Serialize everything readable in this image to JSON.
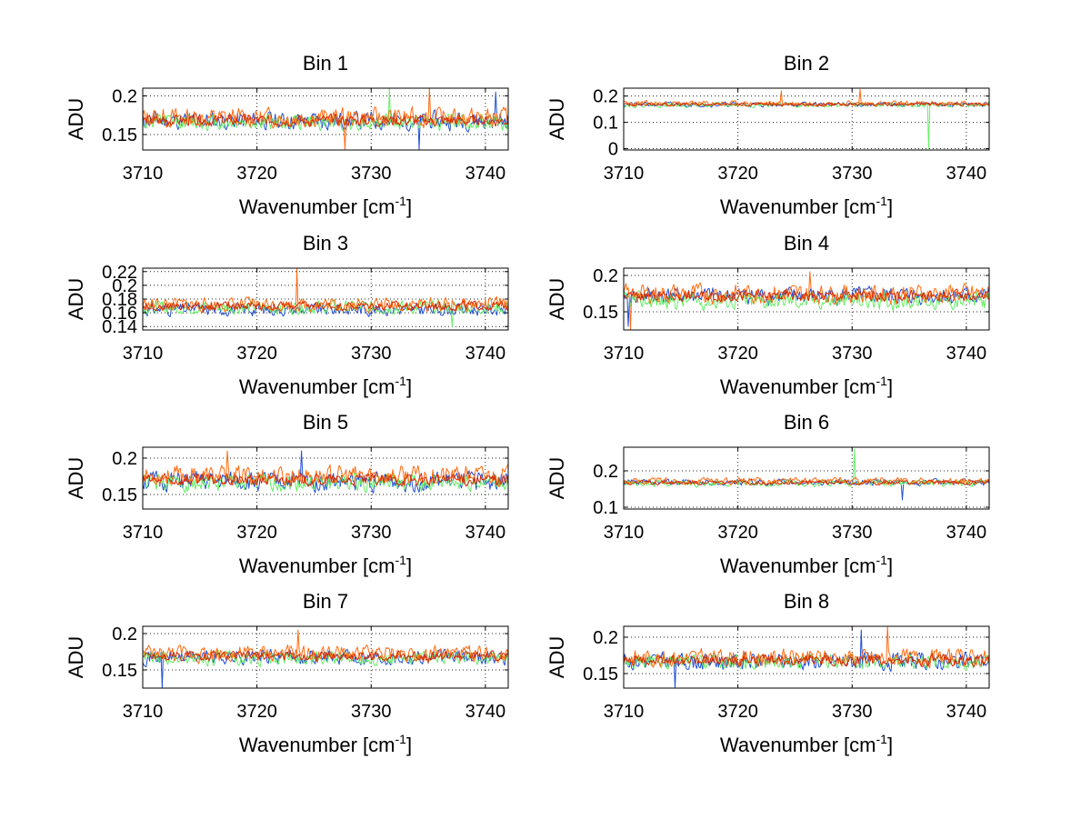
{
  "figure": {
    "description_colors": {
      "blue": "#0044cc",
      "green": "#66ff66",
      "orange": "#ff6600",
      "red": "#cc2200"
    }
  },
  "chart_data": [
    {
      "type": "line",
      "title": "Bin 1",
      "xlabel": "Wavenumber [cm",
      "xlabel_superscript": "-1",
      "xlabel_suffix": "]",
      "ylabel": "ADU",
      "xlim": [
        3710,
        3742
      ],
      "ylim": [
        0.13,
        0.21
      ],
      "xticks": [
        3710,
        3720,
        3730,
        3740
      ],
      "xtick_labels": [
        "3710",
        "3720",
        "3730",
        "3740"
      ],
      "yticks": [
        0.15,
        0.2
      ],
      "ytick_labels": [
        "0.15",
        "0.2"
      ],
      "grid": true,
      "noisy_spectra": true,
      "series": [
        {
          "name": "blue",
          "color": "#1f4fd6",
          "mean": 0.168,
          "amplitude": 0.016,
          "seed": 11,
          "spikes": [
            [
              3734.2,
              0.13
            ],
            [
              3740.9,
              0.205
            ]
          ]
        },
        {
          "name": "green",
          "color": "#66ee66",
          "mean": 0.166,
          "amplitude": 0.014,
          "seed": 12,
          "spikes": [
            [
              3731.6,
              0.21
            ]
          ]
        },
        {
          "name": "orange",
          "color": "#ff6a10",
          "mean": 0.172,
          "amplitude": 0.017,
          "seed": 13,
          "spikes": [
            [
              3727.7,
              0.13
            ],
            [
              3735.1,
              0.21
            ]
          ]
        },
        {
          "name": "red",
          "color": "#d62a00",
          "mean": 0.168,
          "amplitude": 0.01,
          "seed": 14,
          "spikes": []
        }
      ]
    },
    {
      "type": "line",
      "title": "Bin 2",
      "xlabel": "Wavenumber [cm",
      "xlabel_superscript": "-1",
      "xlabel_suffix": "]",
      "ylabel": "ADU",
      "xlim": [
        3710,
        3742
      ],
      "ylim": [
        -0.005,
        0.23
      ],
      "xticks": [
        3710,
        3720,
        3730,
        3740
      ],
      "xtick_labels": [
        "3710",
        "3720",
        "3730",
        "3740"
      ],
      "yticks": [
        0,
        0.1,
        0.2
      ],
      "ytick_labels": [
        "0",
        "0.1",
        "0.2"
      ],
      "grid": true,
      "noisy_spectra": true,
      "series": [
        {
          "name": "blue",
          "color": "#1f4fd6",
          "mean": 0.168,
          "amplitude": 0.012,
          "seed": 21,
          "spikes": []
        },
        {
          "name": "green",
          "color": "#66ee66",
          "mean": 0.166,
          "amplitude": 0.012,
          "seed": 22,
          "spikes": [
            [
              3736.7,
              0.0
            ]
          ]
        },
        {
          "name": "orange",
          "color": "#ff6a10",
          "mean": 0.172,
          "amplitude": 0.013,
          "seed": 23,
          "spikes": [
            [
              3723.8,
              0.22
            ],
            [
              3730.7,
              0.225
            ]
          ]
        },
        {
          "name": "red",
          "color": "#d62a00",
          "mean": 0.168,
          "amplitude": 0.008,
          "seed": 24,
          "spikes": []
        }
      ]
    },
    {
      "type": "line",
      "title": "Bin 3",
      "xlabel": "Wavenumber [cm",
      "xlabel_superscript": "-1",
      "xlabel_suffix": "]",
      "ylabel": "ADU",
      "xlim": [
        3710,
        3742
      ],
      "ylim": [
        0.135,
        0.225
      ],
      "xticks": [
        3710,
        3720,
        3730,
        3740
      ],
      "xtick_labels": [
        "3710",
        "3720",
        "3730",
        "3740"
      ],
      "yticks": [
        0.14,
        0.16,
        0.18,
        0.2,
        0.22
      ],
      "ytick_labels": [
        "0.14",
        "0.16",
        "0.18",
        "0.2",
        "0.22"
      ],
      "grid": true,
      "noisy_spectra": true,
      "series": [
        {
          "name": "blue",
          "color": "#1f4fd6",
          "mean": 0.165,
          "amplitude": 0.012,
          "seed": 31,
          "spikes": []
        },
        {
          "name": "green",
          "color": "#66ee66",
          "mean": 0.168,
          "amplitude": 0.013,
          "seed": 32,
          "spikes": [
            [
              3737.1,
              0.14
            ]
          ]
        },
        {
          "name": "orange",
          "color": "#ff6a10",
          "mean": 0.172,
          "amplitude": 0.014,
          "seed": 33,
          "spikes": [
            [
              3723.5,
              0.225
            ]
          ]
        },
        {
          "name": "red",
          "color": "#d62a00",
          "mean": 0.17,
          "amplitude": 0.009,
          "seed": 34,
          "spikes": []
        }
      ]
    },
    {
      "type": "line",
      "title": "Bin 4",
      "xlabel": "Wavenumber [cm",
      "xlabel_superscript": "-1",
      "xlabel_suffix": "]",
      "ylabel": "ADU",
      "xlim": [
        3710,
        3742
      ],
      "ylim": [
        0.125,
        0.21
      ],
      "xticks": [
        3710,
        3720,
        3730,
        3740
      ],
      "xtick_labels": [
        "3710",
        "3720",
        "3730",
        "3740"
      ],
      "yticks": [
        0.15,
        0.2
      ],
      "ytick_labels": [
        "0.15",
        "0.2"
      ],
      "grid": true,
      "noisy_spectra": true,
      "series": [
        {
          "name": "blue",
          "color": "#1f4fd6",
          "mean": 0.172,
          "amplitude": 0.016,
          "seed": 41,
          "spikes": [
            [
              3710.4,
              0.13
            ]
          ]
        },
        {
          "name": "green",
          "color": "#66ee66",
          "mean": 0.165,
          "amplitude": 0.016,
          "seed": 42,
          "spikes": []
        },
        {
          "name": "orange",
          "color": "#ff6a10",
          "mean": 0.175,
          "amplitude": 0.018,
          "seed": 43,
          "spikes": [
            [
              3710.6,
              0.125
            ],
            [
              3726.3,
              0.205
            ]
          ]
        },
        {
          "name": "red",
          "color": "#d62a00",
          "mean": 0.172,
          "amplitude": 0.01,
          "seed": 44,
          "spikes": []
        }
      ]
    },
    {
      "type": "line",
      "title": "Bin 5",
      "xlabel": "Wavenumber [cm",
      "xlabel_superscript": "-1",
      "xlabel_suffix": "]",
      "ylabel": "ADU",
      "xlim": [
        3710,
        3742
      ],
      "ylim": [
        0.13,
        0.215
      ],
      "xticks": [
        3710,
        3720,
        3730,
        3740
      ],
      "xtick_labels": [
        "3710",
        "3720",
        "3730",
        "3740"
      ],
      "yticks": [
        0.15,
        0.2
      ],
      "ytick_labels": [
        "0.15",
        "0.2"
      ],
      "grid": true,
      "noisy_spectra": true,
      "series": [
        {
          "name": "blue",
          "color": "#1f4fd6",
          "mean": 0.168,
          "amplitude": 0.018,
          "seed": 51,
          "spikes": [
            [
              3723.9,
              0.21
            ]
          ]
        },
        {
          "name": "green",
          "color": "#66ee66",
          "mean": 0.166,
          "amplitude": 0.016,
          "seed": 52,
          "spikes": []
        },
        {
          "name": "orange",
          "color": "#ff6a10",
          "mean": 0.176,
          "amplitude": 0.018,
          "seed": 53,
          "spikes": [
            [
              3717.4,
              0.21
            ]
          ]
        },
        {
          "name": "red",
          "color": "#d62a00",
          "mean": 0.17,
          "amplitude": 0.011,
          "seed": 54,
          "spikes": []
        }
      ]
    },
    {
      "type": "line",
      "title": "Bin 6",
      "xlabel": "Wavenumber [cm",
      "xlabel_superscript": "-1",
      "xlabel_suffix": "]",
      "ylabel": "ADU",
      "xlim": [
        3710,
        3742
      ],
      "ylim": [
        0.095,
        0.265
      ],
      "xticks": [
        3710,
        3720,
        3730,
        3740
      ],
      "xtick_labels": [
        "3710",
        "3720",
        "3730",
        "3740"
      ],
      "yticks": [
        0.1,
        0.2
      ],
      "ytick_labels": [
        "0.1",
        "0.2"
      ],
      "grid": true,
      "noisy_spectra": true,
      "series": [
        {
          "name": "blue",
          "color": "#1f4fd6",
          "mean": 0.168,
          "amplitude": 0.012,
          "seed": 61,
          "spikes": [
            [
              3734.4,
              0.12
            ]
          ]
        },
        {
          "name": "green",
          "color": "#66ee66",
          "mean": 0.166,
          "amplitude": 0.012,
          "seed": 62,
          "spikes": [
            [
              3730.2,
              0.26
            ]
          ]
        },
        {
          "name": "orange",
          "color": "#ff6a10",
          "mean": 0.172,
          "amplitude": 0.013,
          "seed": 63,
          "spikes": []
        },
        {
          "name": "red",
          "color": "#d62a00",
          "mean": 0.168,
          "amplitude": 0.008,
          "seed": 64,
          "spikes": []
        }
      ]
    },
    {
      "type": "line",
      "title": "Bin 7",
      "xlabel": "Wavenumber [cm",
      "xlabel_superscript": "-1",
      "xlabel_suffix": "]",
      "ylabel": "ADU",
      "xlim": [
        3710,
        3742
      ],
      "ylim": [
        0.125,
        0.21
      ],
      "xticks": [
        3710,
        3720,
        3730,
        3740
      ],
      "xtick_labels": [
        "3710",
        "3720",
        "3730",
        "3740"
      ],
      "yticks": [
        0.15,
        0.2
      ],
      "ytick_labels": [
        "0.15",
        "0.2"
      ],
      "grid": true,
      "noisy_spectra": true,
      "series": [
        {
          "name": "blue",
          "color": "#1f4fd6",
          "mean": 0.168,
          "amplitude": 0.014,
          "seed": 71,
          "spikes": [
            [
              3711.7,
              0.125
            ]
          ]
        },
        {
          "name": "green",
          "color": "#66ee66",
          "mean": 0.166,
          "amplitude": 0.013,
          "seed": 72,
          "spikes": []
        },
        {
          "name": "orange",
          "color": "#ff6a10",
          "mean": 0.172,
          "amplitude": 0.015,
          "seed": 73,
          "spikes": [
            [
              3723.6,
              0.205
            ]
          ]
        },
        {
          "name": "red",
          "color": "#d62a00",
          "mean": 0.169,
          "amplitude": 0.009,
          "seed": 74,
          "spikes": []
        }
      ]
    },
    {
      "type": "line",
      "title": "Bin 8",
      "xlabel": "Wavenumber [cm",
      "xlabel_superscript": "-1",
      "xlabel_suffix": "]",
      "ylabel": "ADU",
      "xlim": [
        3710,
        3742
      ],
      "ylim": [
        0.13,
        0.215
      ],
      "xticks": [
        3710,
        3720,
        3730,
        3740
      ],
      "xtick_labels": [
        "3710",
        "3720",
        "3730",
        "3740"
      ],
      "yticks": [
        0.15,
        0.2
      ],
      "ytick_labels": [
        "0.15",
        "0.2"
      ],
      "grid": true,
      "noisy_spectra": true,
      "series": [
        {
          "name": "blue",
          "color": "#1f4fd6",
          "mean": 0.167,
          "amplitude": 0.016,
          "seed": 81,
          "spikes": [
            [
              3730.8,
              0.21
            ],
            [
              3714.5,
              0.13
            ]
          ]
        },
        {
          "name": "green",
          "color": "#66ee66",
          "mean": 0.166,
          "amplitude": 0.014,
          "seed": 82,
          "spikes": []
        },
        {
          "name": "orange",
          "color": "#ff6a10",
          "mean": 0.172,
          "amplitude": 0.016,
          "seed": 83,
          "spikes": [
            [
              3733.1,
              0.215
            ]
          ]
        },
        {
          "name": "red",
          "color": "#d62a00",
          "mean": 0.168,
          "amplitude": 0.01,
          "seed": 84,
          "spikes": []
        }
      ]
    }
  ]
}
